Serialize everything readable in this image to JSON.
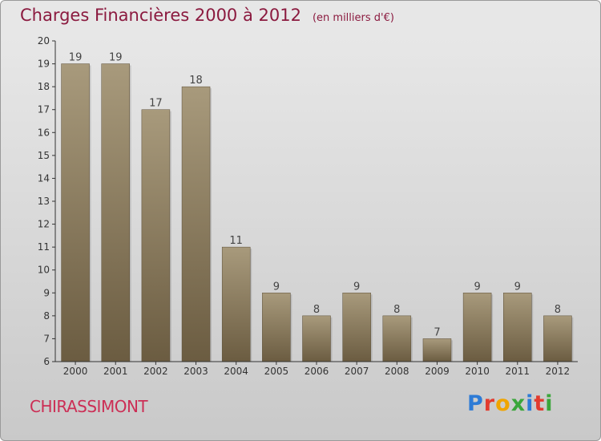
{
  "title": "Charges Financières 2000 à 2012",
  "subtitle": "(en milliers d'€)",
  "commune": "CHIRASSIMONT",
  "logo": {
    "text": "Proxiti",
    "letters": [
      "P",
      "r",
      "o",
      "x",
      "i",
      "t",
      "i"
    ],
    "colors": [
      "#2d7bd6",
      "#e23b2e",
      "#f0a500",
      "#3aa63a",
      "#2d7bd6",
      "#e23b2e",
      "#3aa63a"
    ]
  },
  "colors": {
    "bar_top": "#a89a7c",
    "bar_bottom": "#6b5c41",
    "axis": "#333333",
    "title": "#8b1a3f",
    "commune": "#cc2e55"
  },
  "chart_data": {
    "type": "bar",
    "title": "Charges Financières 2000 à 2012",
    "subtitle": "(en milliers d'€)",
    "categories": [
      "2000",
      "2001",
      "2002",
      "2003",
      "2004",
      "2005",
      "2006",
      "2007",
      "2008",
      "2009",
      "2010",
      "2011",
      "2012"
    ],
    "values": [
      19,
      19,
      17,
      18,
      11,
      9,
      8,
      9,
      8,
      7,
      9,
      9,
      8
    ],
    "data_labels": [
      "19",
      "19",
      "17",
      "18",
      "11",
      "9",
      "8",
      "9",
      "8",
      "7",
      "9",
      "9",
      "8"
    ],
    "ylim": [
      6,
      20
    ],
    "yticks": [
      6,
      7,
      8,
      9,
      10,
      11,
      12,
      13,
      14,
      15,
      16,
      17,
      18,
      19,
      20
    ],
    "grid": false,
    "xlabel": "",
    "ylabel": ""
  }
}
